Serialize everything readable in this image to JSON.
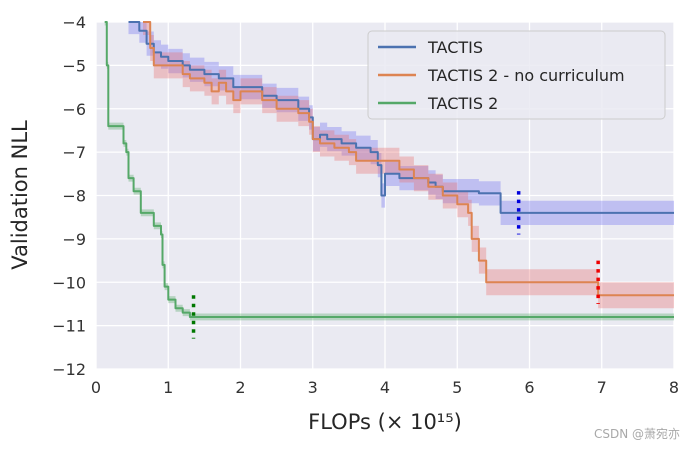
{
  "chart_data": {
    "type": "line",
    "xlabel": "FLOPs (× 10¹⁵)",
    "ylabel": "Validation NLL",
    "xlim": [
      0,
      8
    ],
    "ylim": [
      -12,
      -4
    ],
    "xticks": [
      "0",
      "1",
      "2",
      "3",
      "4",
      "5",
      "6",
      "7",
      "8"
    ],
    "yticks": [
      "−12",
      "−11",
      "−10",
      "−9",
      "−8",
      "−7",
      "−6",
      "−5",
      "−4"
    ],
    "grid": true,
    "legend_position": "top-right",
    "series": [
      {
        "name": "TACTIS",
        "color": "#4c72b0",
        "band_color": "#6f6ff0",
        "points": [
          [
            0.45,
            -4.0
          ],
          [
            0.6,
            -4.2
          ],
          [
            0.7,
            -4.5
          ],
          [
            0.8,
            -4.7
          ],
          [
            0.9,
            -4.8
          ],
          [
            1.0,
            -4.9
          ],
          [
            1.1,
            -4.9
          ],
          [
            1.2,
            -5.0
          ],
          [
            1.3,
            -5.1
          ],
          [
            1.5,
            -5.2
          ],
          [
            1.7,
            -5.3
          ],
          [
            1.9,
            -5.5
          ],
          [
            2.1,
            -5.5
          ],
          [
            2.3,
            -5.7
          ],
          [
            2.5,
            -5.8
          ],
          [
            2.8,
            -6.0
          ],
          [
            2.95,
            -6.2
          ],
          [
            3.0,
            -6.7
          ],
          [
            3.1,
            -6.6
          ],
          [
            3.2,
            -6.7
          ],
          [
            3.4,
            -6.8
          ],
          [
            3.6,
            -6.9
          ],
          [
            3.8,
            -7.0
          ],
          [
            3.9,
            -7.3
          ],
          [
            3.95,
            -8.0
          ],
          [
            4.0,
            -7.5
          ],
          [
            4.2,
            -7.6
          ],
          [
            4.5,
            -7.6
          ],
          [
            4.6,
            -7.7
          ],
          [
            4.7,
            -7.8
          ],
          [
            4.8,
            -7.9
          ],
          [
            5.1,
            -7.9
          ],
          [
            5.3,
            -7.95
          ],
          [
            5.5,
            -7.95
          ],
          [
            5.6,
            -8.4
          ],
          [
            6.0,
            -8.4
          ],
          [
            7.0,
            -8.4
          ],
          [
            8.0,
            -8.4
          ]
        ],
        "band": 0.28,
        "marker_x": 5.85,
        "marker_y": [
          -7.9,
          -8.9
        ]
      },
      {
        "name": "TACTIS 2 - no curriculum",
        "color": "#dd8452",
        "band_color": "#e87070",
        "points": [
          [
            0.65,
            -4.0
          ],
          [
            0.75,
            -4.6
          ],
          [
            0.8,
            -5.0
          ],
          [
            0.9,
            -5.0
          ],
          [
            1.1,
            -5.0
          ],
          [
            1.2,
            -5.2
          ],
          [
            1.3,
            -5.3
          ],
          [
            1.5,
            -5.4
          ],
          [
            1.6,
            -5.6
          ],
          [
            1.7,
            -5.4
          ],
          [
            1.8,
            -5.6
          ],
          [
            1.9,
            -5.8
          ],
          [
            2.0,
            -5.6
          ],
          [
            2.3,
            -5.8
          ],
          [
            2.5,
            -6.0
          ],
          [
            2.8,
            -6.1
          ],
          [
            2.95,
            -6.3
          ],
          [
            3.0,
            -6.7
          ],
          [
            3.1,
            -6.8
          ],
          [
            3.3,
            -6.9
          ],
          [
            3.5,
            -7.0
          ],
          [
            3.6,
            -7.2
          ],
          [
            3.8,
            -7.2
          ],
          [
            4.0,
            -7.2
          ],
          [
            4.2,
            -7.4
          ],
          [
            4.4,
            -7.6
          ],
          [
            4.6,
            -7.8
          ],
          [
            4.8,
            -8.0
          ],
          [
            5.0,
            -8.2
          ],
          [
            5.15,
            -8.4
          ],
          [
            5.2,
            -9.0
          ],
          [
            5.3,
            -9.5
          ],
          [
            5.4,
            -10.0
          ],
          [
            5.8,
            -10.0
          ],
          [
            6.5,
            -10.0
          ],
          [
            6.9,
            -10.0
          ],
          [
            6.95,
            -10.3
          ],
          [
            7.5,
            -10.3
          ],
          [
            8.0,
            -10.3
          ]
        ],
        "band": 0.3,
        "marker_x": 6.95,
        "marker_y": [
          -9.5,
          -10.5
        ]
      },
      {
        "name": "TACTIS 2",
        "color": "#55a868",
        "band_color": "#55a868",
        "points": [
          [
            0.12,
            -4.0
          ],
          [
            0.15,
            -5.0
          ],
          [
            0.17,
            -6.4
          ],
          [
            0.35,
            -6.4
          ],
          [
            0.38,
            -6.8
          ],
          [
            0.42,
            -7.0
          ],
          [
            0.45,
            -7.6
          ],
          [
            0.5,
            -7.6
          ],
          [
            0.52,
            -7.9
          ],
          [
            0.6,
            -7.9
          ],
          [
            0.62,
            -8.4
          ],
          [
            0.8,
            -8.7
          ],
          [
            0.9,
            -8.9
          ],
          [
            0.92,
            -9.6
          ],
          [
            0.95,
            -10.1
          ],
          [
            1.0,
            -10.4
          ],
          [
            1.1,
            -10.6
          ],
          [
            1.2,
            -10.7
          ],
          [
            1.3,
            -10.8
          ],
          [
            2.0,
            -10.8
          ],
          [
            3.0,
            -10.8
          ],
          [
            5.0,
            -10.8
          ],
          [
            8.0,
            -10.8
          ]
        ],
        "band": 0.08,
        "marker_x": 1.35,
        "marker_y": [
          -10.3,
          -11.3
        ]
      }
    ]
  },
  "watermark": "CSDN @萧宛亦"
}
